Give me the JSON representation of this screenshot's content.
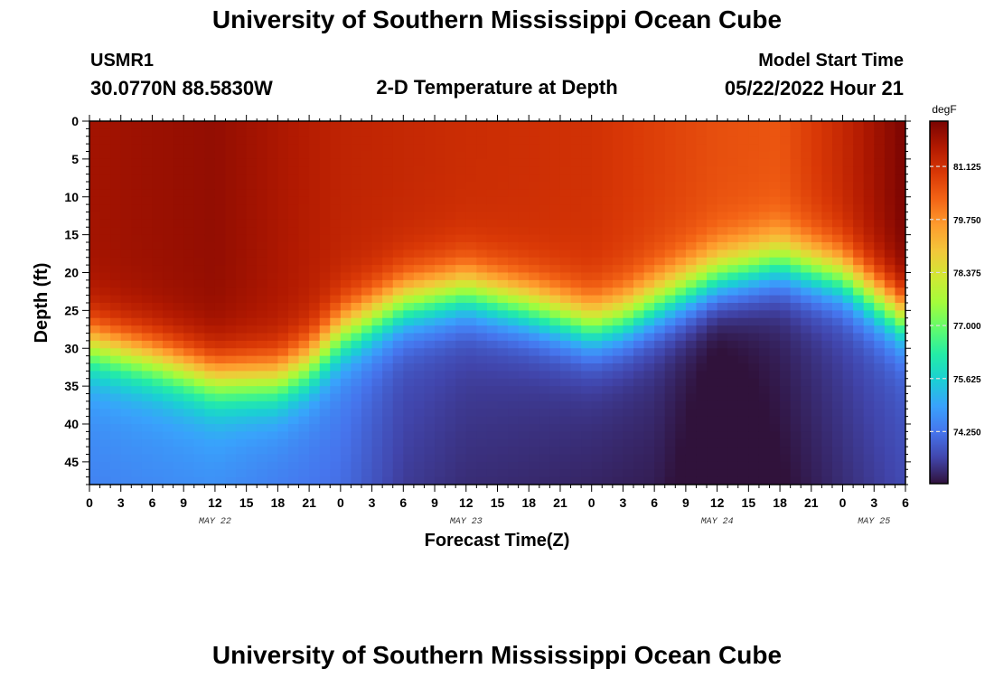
{
  "header": {
    "title": "University of Southern Mississippi Ocean Cube",
    "station_id": "USMR1",
    "coords": "30.0770N  88.5830W",
    "plot_title": "2-D Temperature at Depth",
    "model_start_label": "Model Start Time",
    "model_start_value": "05/22/2022 Hour 21"
  },
  "footer": {
    "title": "University of Southern Mississippi Ocean Cube"
  },
  "chart_data": {
    "type": "heatmap",
    "title": "2-D Temperature at Depth",
    "xlabel": "Forecast Time(Z)",
    "ylabel": "Depth (ft)",
    "ylim": [
      0,
      48
    ],
    "xlim": [
      0,
      78
    ],
    "x_tick_labels": [
      "0",
      "3",
      "6",
      "9",
      "12",
      "15",
      "18",
      "21",
      "0",
      "3",
      "6",
      "9",
      "12",
      "15",
      "18",
      "21",
      "0",
      "3",
      "6",
      "9",
      "12",
      "15",
      "18",
      "21",
      "0",
      "3",
      "6"
    ],
    "y_ticks": [
      0,
      5,
      10,
      15,
      20,
      25,
      30,
      35,
      40,
      45
    ],
    "date_labels": [
      {
        "label": "MAY 22",
        "hour": 12
      },
      {
        "label": "MAY 23",
        "hour": 36
      },
      {
        "label": "MAY 24",
        "hour": 60
      },
      {
        "label": "MAY 25",
        "hour": 75
      }
    ],
    "colorbar": {
      "unit": "degF",
      "min": 72.9,
      "max": 82.3,
      "ticks": [
        "81.125",
        "79.750",
        "78.375",
        "77.000",
        "75.625",
        "74.250"
      ],
      "colors": [
        "#30123b",
        "#4145ab",
        "#4675ed",
        "#39a2fc",
        "#1bcfd4",
        "#24eca6",
        "#61fc6c",
        "#a4fc3b",
        "#d1e834",
        "#f3c63a",
        "#fe9b2d",
        "#f36315",
        "#d93806",
        "#b11901",
        "#7a0402"
      ]
    },
    "thermocline_depth_ft": {
      "hours": [
        0,
        6,
        12,
        18,
        21,
        24,
        30,
        36,
        42,
        48,
        51,
        54,
        60,
        66,
        72,
        78
      ],
      "values": [
        29.5,
        31.5,
        34,
        34,
        32,
        28,
        24,
        22.5,
        24.5,
        27,
        26,
        24,
        20.5,
        18.5,
        20.5,
        26
      ]
    },
    "surface_temp_degF": {
      "hours": [
        0,
        12,
        24,
        36,
        48,
        60,
        66,
        72,
        78
      ],
      "values": [
        81.8,
        82.0,
        81.4,
        81.2,
        81.1,
        80.6,
        80.5,
        81.3,
        82.3
      ]
    },
    "bottom_temp_degF": {
      "hours": [
        0,
        12,
        24,
        30,
        36,
        48,
        54,
        60,
        66,
        72,
        78
      ],
      "values": [
        74.8,
        75.0,
        74.5,
        73.8,
        73.6,
        73.5,
        73.4,
        72.9,
        73.2,
        73.6,
        74.0
      ]
    }
  }
}
